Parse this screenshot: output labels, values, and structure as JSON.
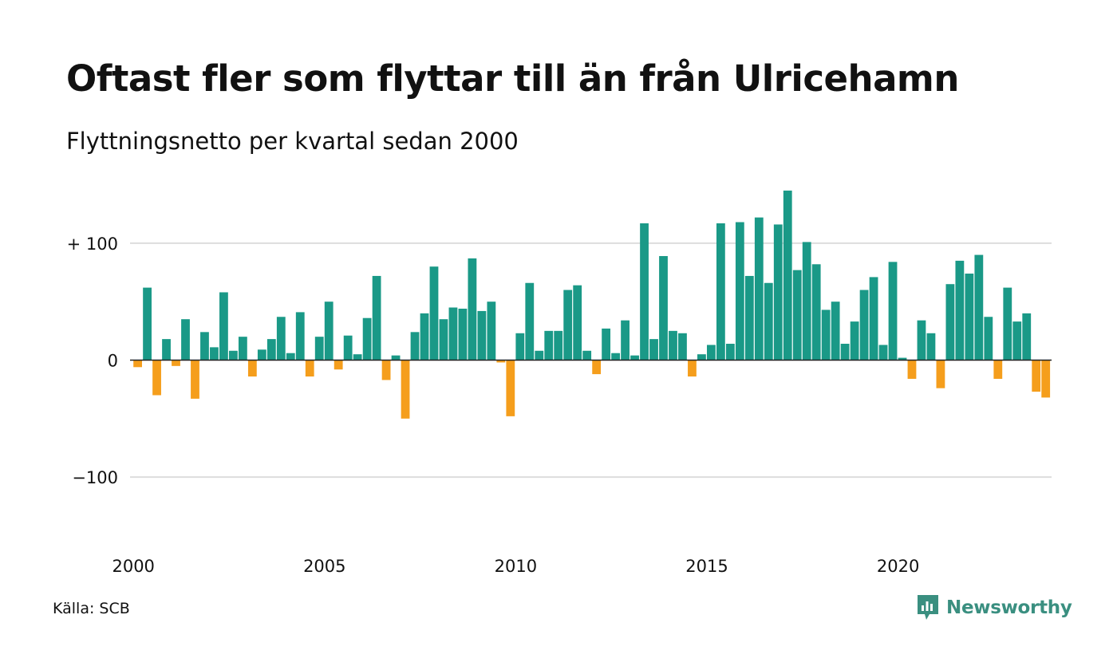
{
  "header": {
    "title": "Oftast fler som flyttar till än från Ulricehamn",
    "subtitle": "Flyttningsnetto per kvartal sedan 2000"
  },
  "footer": {
    "source": "Källa: SCB",
    "brand": "Newsworthy",
    "brand_icon": "bar-chart-icon"
  },
  "colors": {
    "positive": "#1a9987",
    "negative": "#f59e1c",
    "grid": "#dddddd",
    "baseline": "#222222",
    "brand": "#3a8f80"
  },
  "chart_data": {
    "type": "bar",
    "title": "Oftast fler som flyttar till än från Ulricehamn",
    "subtitle": "Flyttningsnetto per kvartal sedan 2000",
    "x_start": "2000 Q1",
    "x_ticks": [
      "2000",
      "2005",
      "2010",
      "2015",
      "2020"
    ],
    "y_ticks": [
      {
        "value": 100,
        "label": "+ 100"
      },
      {
        "value": 0,
        "label": "0"
      },
      {
        "value": -100,
        "label": "−100"
      }
    ],
    "ylim": [
      -160,
      150
    ],
    "grid": true,
    "values": [
      -6,
      62,
      -30,
      18,
      -5,
      35,
      -33,
      24,
      11,
      58,
      8,
      20,
      -14,
      9,
      18,
      37,
      6,
      41,
      -14,
      20,
      50,
      -8,
      21,
      5,
      36,
      72,
      -17,
      4,
      -50,
      24,
      40,
      80,
      35,
      45,
      44,
      87,
      42,
      50,
      -2,
      -48,
      23,
      66,
      8,
      25,
      25,
      60,
      64,
      8,
      -12,
      27,
      6,
      34,
      4,
      117,
      18,
      89,
      25,
      23,
      -14,
      5,
      13,
      117,
      14,
      118,
      72,
      122,
      66,
      116,
      145,
      77,
      101,
      82,
      43,
      50,
      14,
      33,
      60,
      71,
      13,
      84,
      2,
      -16,
      34,
      23,
      -24,
      65,
      85,
      74,
      90,
      37,
      -16,
      62,
      33,
      40,
      -27,
      -32
    ]
  }
}
